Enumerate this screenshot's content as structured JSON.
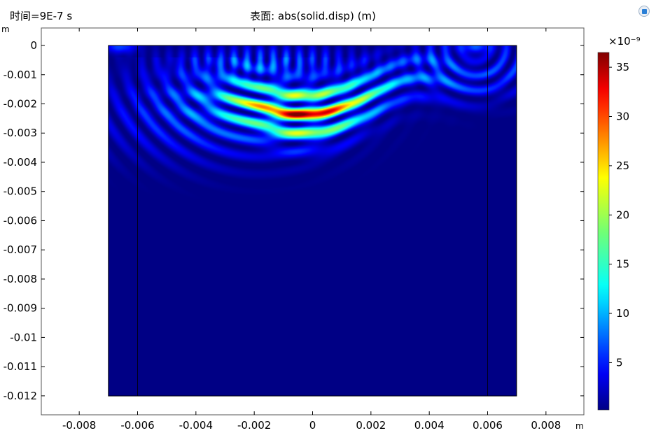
{
  "chart_data": {
    "type": "heatmap",
    "time_label": "时间=9E-7 s",
    "title": "表面: abs(solid.disp) (m)",
    "xlabel": "m",
    "ylabel": "m",
    "xlim": [
      -0.0093,
      0.0093
    ],
    "ylim": [
      -0.01265,
      0.0006
    ],
    "x_ticks": [
      "-0.008",
      "-0.006",
      "-0.004",
      "-0.002",
      "0",
      "0.002",
      "0.004",
      "0.006",
      "0.008"
    ],
    "x_tick_values": [
      -0.008,
      -0.006,
      -0.004,
      -0.002,
      0,
      0.002,
      0.004,
      0.006,
      0.008
    ],
    "y_ticks": [
      "0",
      "-0.001",
      "-0.002",
      "-0.003",
      "-0.004",
      "-0.005",
      "-0.006",
      "-0.007",
      "-0.008",
      "-0.009",
      "-0.01",
      "-0.011",
      "-0.012"
    ],
    "y_tick_values": [
      0,
      -0.001,
      -0.002,
      -0.003,
      -0.004,
      -0.005,
      -0.006,
      -0.007,
      -0.008,
      -0.009,
      -0.01,
      -0.011,
      -0.012
    ],
    "domain": {
      "x": [
        -0.007,
        0.007
      ],
      "y": [
        -0.012,
        0
      ]
    },
    "vertical_lines_x": [
      -0.006,
      0.006
    ],
    "colorbar": {
      "label": "×10⁻⁹",
      "min": 0.2,
      "max": 36.5,
      "ticks": [
        "5",
        "10",
        "15",
        "20",
        "25",
        "30",
        "35"
      ],
      "tick_values": [
        5,
        10,
        15,
        20,
        25,
        30,
        35
      ],
      "colormap": "rainbow"
    },
    "max_value": 36.5,
    "max_location": [
      -0.001,
      -0.0019
    ],
    "grid": false,
    "legend": "colorbar-right"
  }
}
